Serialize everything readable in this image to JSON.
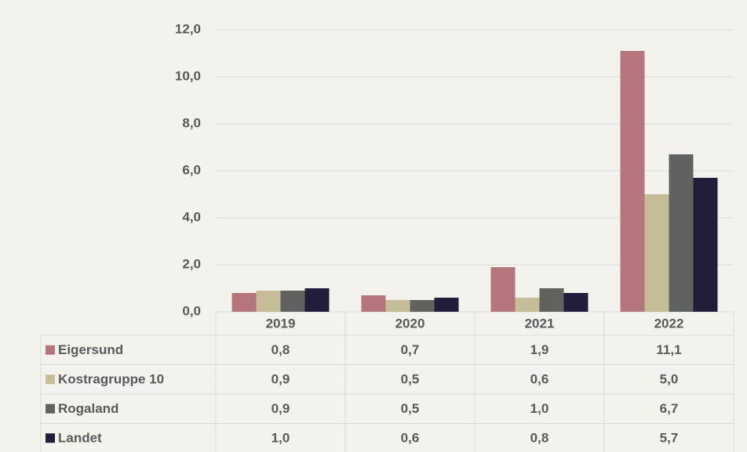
{
  "chart_data": {
    "type": "bar",
    "categories": [
      "2019",
      "2020",
      "2021",
      "2022"
    ],
    "series": [
      {
        "name": "Eigersund",
        "color": "#b5757c",
        "values": [
          0.8,
          0.7,
          1.9,
          11.1
        ],
        "value_labels": [
          "0,8",
          "0,7",
          "1,9",
          "11,1"
        ]
      },
      {
        "name": "Kostragruppe 10",
        "color": "#c5bc98",
        "values": [
          0.9,
          0.5,
          0.6,
          5.0
        ],
        "value_labels": [
          "0,9",
          "0,5",
          "0,6",
          "5,0"
        ]
      },
      {
        "name": "Rogaland",
        "color": "#60635d",
        "values": [
          0.9,
          0.5,
          1.0,
          6.7
        ],
        "value_labels": [
          "0,9",
          "0,5",
          "1,0",
          "6,7"
        ]
      },
      {
        "name": "Landet",
        "color": "#231d3b",
        "values": [
          1.0,
          0.6,
          0.8,
          5.7
        ],
        "value_labels": [
          "1,0",
          "0,6",
          "0,8",
          "5,7"
        ]
      }
    ],
    "ylim": [
      0,
      12
    ],
    "yticks": [
      {
        "value": 0,
        "label": "0,0"
      },
      {
        "value": 2,
        "label": "2,0"
      },
      {
        "value": 4,
        "label": "4,0"
      },
      {
        "value": 6,
        "label": "6,0"
      },
      {
        "value": 8,
        "label": "8,0"
      },
      {
        "value": 10,
        "label": "10,0"
      },
      {
        "value": 12,
        "label": "12,0"
      }
    ],
    "grid": true
  }
}
